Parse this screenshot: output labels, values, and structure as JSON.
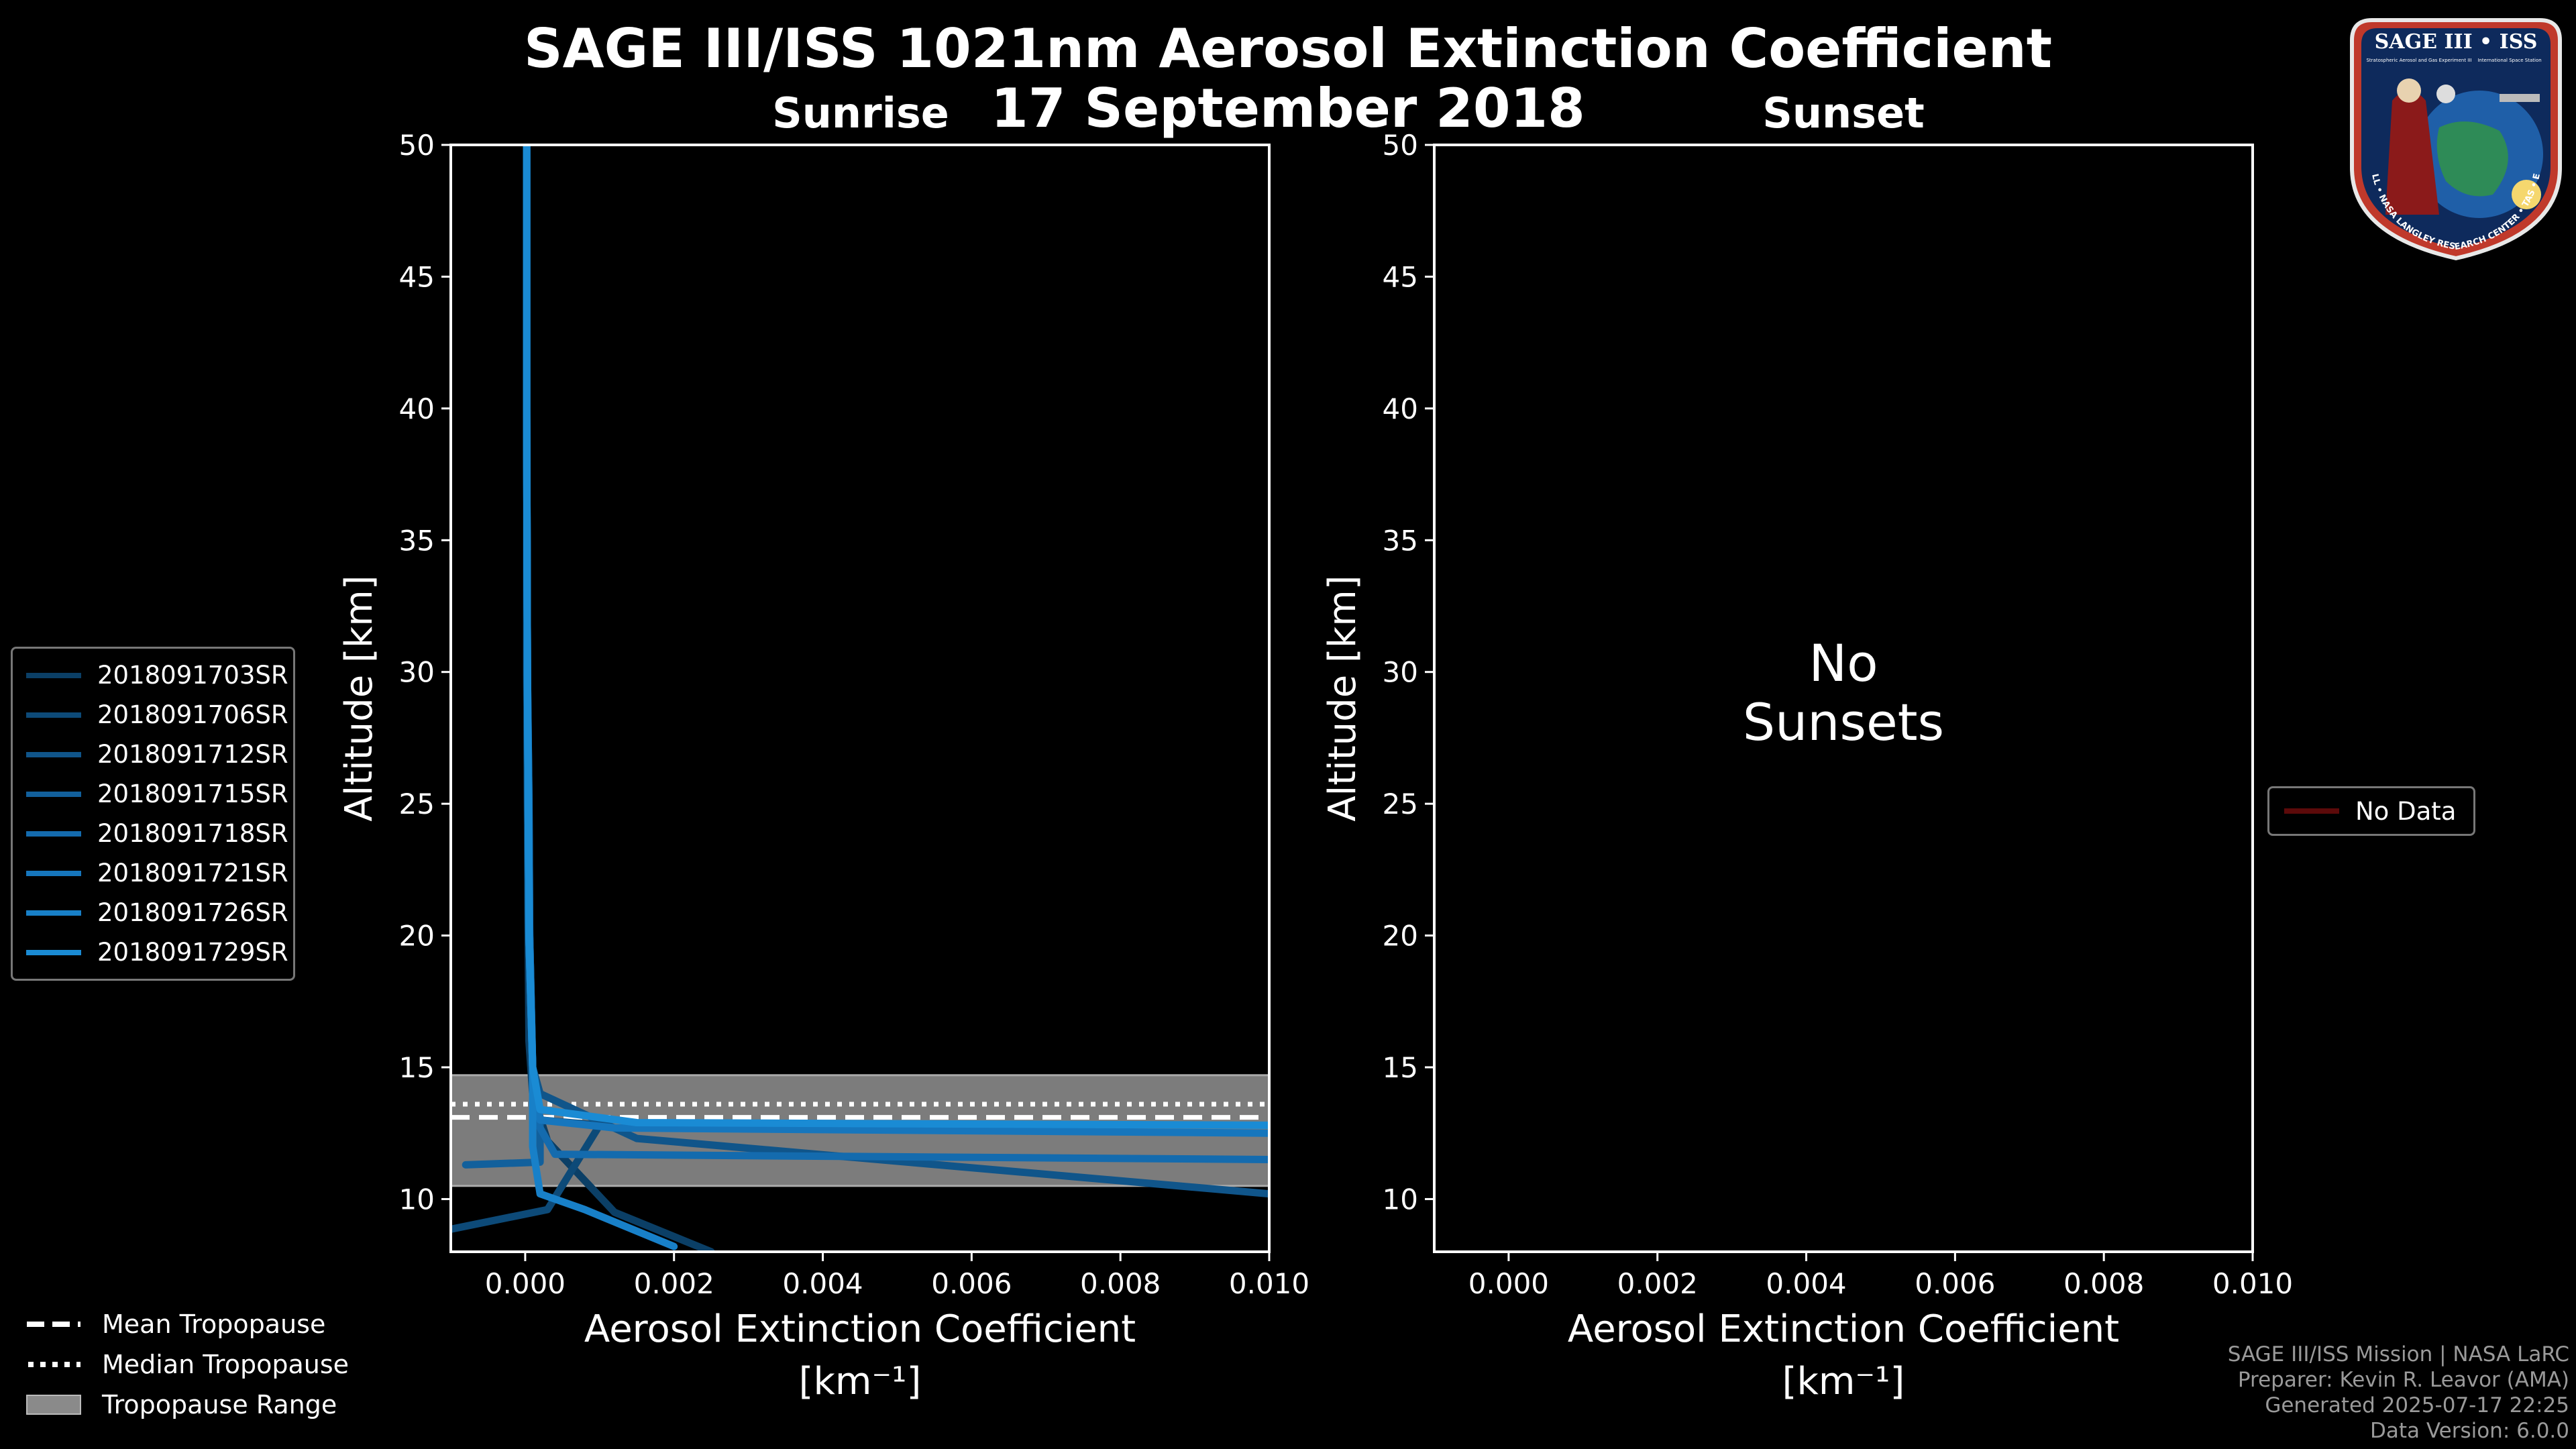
{
  "title": {
    "line1": "SAGE III/ISS 1021nm Aerosol Extinction Coefficient",
    "line2": "17 September 2018"
  },
  "colors": {
    "background": "#000000",
    "trace": "#1a86c4",
    "tropopause_band": "#8a8a8a",
    "no_data": "#5c0a0a"
  },
  "chart_data": [
    {
      "type": "line",
      "title": "Sunrise",
      "xlabel": "Aerosol Extinction Coefficient",
      "xlabel_units": "[km⁻¹]",
      "ylabel": "Altitude [km]",
      "xlim": [
        -0.001,
        0.01
      ],
      "ylim": [
        8,
        50
      ],
      "xticks": [
        0.0,
        0.002,
        0.004,
        0.006,
        0.008,
        0.01
      ],
      "xtick_labels": [
        "0.000",
        "0.002",
        "0.004",
        "0.006",
        "0.008",
        "0.010"
      ],
      "yticks": [
        10,
        15,
        20,
        25,
        30,
        35,
        40,
        45,
        50
      ],
      "ytick_labels": [
        "10",
        "15",
        "20",
        "25",
        "30",
        "35",
        "40",
        "45",
        "50"
      ],
      "tropopause": {
        "mean": 13.1,
        "median": 13.6,
        "range": [
          10.5,
          14.7
        ]
      },
      "series": [
        {
          "name": "2018091703SR",
          "color": "#0b3f66",
          "x": [
            2e-05,
            2e-05,
            2e-05,
            3e-05,
            4e-05,
            5e-05,
            0.0001,
            0.0003,
            0.0012,
            0.0025
          ],
          "y": [
            50,
            40,
            30,
            25,
            20,
            16,
            14,
            12.2,
            9.5,
            8
          ]
        },
        {
          "name": "2018091706SR",
          "color": "#0d4a78",
          "x": [
            2e-05,
            2e-05,
            3e-05,
            4e-05,
            5e-05,
            0.0001,
            0.0002,
            0.001,
            0.0003,
            -0.0011
          ],
          "y": [
            50,
            40,
            30,
            25,
            20,
            15,
            13,
            12.8,
            9.6,
            8.8
          ]
        },
        {
          "name": "2018091712SR",
          "color": "#10558a",
          "x": [
            2e-05,
            2e-05,
            3e-05,
            4e-05,
            6e-05,
            0.0001,
            0.0002,
            0.0015,
            0.01
          ],
          "y": [
            50,
            40,
            30,
            25,
            20,
            15,
            14,
            12.3,
            10.2
          ]
        },
        {
          "name": "2018091715SR",
          "color": "#12609c",
          "x": [
            2e-05,
            2e-05,
            3e-05,
            5e-05,
            6e-05,
            0.0001,
            0.0002,
            0.0002,
            -0.0008
          ],
          "y": [
            50,
            40,
            30,
            25,
            20,
            15,
            13,
            11.4,
            11.3
          ]
        },
        {
          "name": "2018091718SR",
          "color": "#146bae",
          "x": [
            2e-05,
            2e-05,
            3e-05,
            4e-05,
            5e-05,
            0.0001,
            0.0001,
            0.0004,
            0.01
          ],
          "y": [
            50,
            40,
            30,
            25,
            20,
            15,
            13.2,
            11.7,
            11.5
          ]
        },
        {
          "name": "2018091721SR",
          "color": "#1676bd",
          "x": [
            2e-05,
            2e-05,
            3e-05,
            5e-05,
            6e-05,
            0.0001,
            0.0002,
            0.0012,
            0.01
          ],
          "y": [
            50,
            40,
            30,
            25,
            20,
            15,
            13,
            12.7,
            12.5
          ]
        },
        {
          "name": "2018091726SR",
          "color": "#1880c8",
          "x": [
            2e-05,
            2e-05,
            3e-05,
            4e-05,
            5e-05,
            0.0001,
            0.0001,
            0.0002,
            0.0008,
            0.002
          ],
          "y": [
            50,
            40,
            30,
            25,
            20,
            15,
            12,
            10.2,
            9.6,
            8.2
          ]
        },
        {
          "name": "2018091729SR",
          "color": "#1a8bd4",
          "x": [
            2e-05,
            2e-05,
            3e-05,
            4e-05,
            5e-05,
            0.0001,
            0.0002,
            0.0015,
            0.01
          ],
          "y": [
            50,
            40,
            30,
            25,
            20,
            15,
            13.4,
            12.9,
            12.8
          ]
        }
      ]
    },
    {
      "type": "line",
      "title": "Sunset",
      "xlabel": "Aerosol Extinction Coefficient",
      "xlabel_units": "[km⁻¹]",
      "ylabel": "Altitude [km]",
      "xlim": [
        -0.001,
        0.01
      ],
      "ylim": [
        8,
        50
      ],
      "xticks": [
        0.0,
        0.002,
        0.004,
        0.006,
        0.008,
        0.01
      ],
      "xtick_labels": [
        "0.000",
        "0.002",
        "0.004",
        "0.006",
        "0.008",
        "0.010"
      ],
      "yticks": [
        10,
        15,
        20,
        25,
        30,
        35,
        40,
        45,
        50
      ],
      "ytick_labels": [
        "10",
        "15",
        "20",
        "25",
        "30",
        "35",
        "40",
        "45",
        "50"
      ],
      "annotation": [
        "No",
        "Sunsets"
      ],
      "series": [],
      "legend": [
        {
          "name": "No Data",
          "color": "#5c0a0a"
        }
      ]
    }
  ],
  "bottom_legend": [
    {
      "label": "Mean Tropopause",
      "style": "dashed"
    },
    {
      "label": "Median Tropopause",
      "style": "dotted"
    },
    {
      "label": "Tropopause Range",
      "style": "band"
    }
  ],
  "credits": [
    "SAGE III/ISS Mission | NASA LaRC",
    "Preparer: Kevin R. Leavor (AMA)",
    "Generated 2025-07-17 22:25",
    "Data Version: 6.0.0"
  ],
  "logo": {
    "line1": "SAGE III • ISS",
    "small1": "Stratospheric Aerosol and Gas Experiment III",
    "small2": "International Space Station",
    "ring": "BALL • NASA LANGLEY RESEARCH CENTER • TAS • ESA"
  }
}
